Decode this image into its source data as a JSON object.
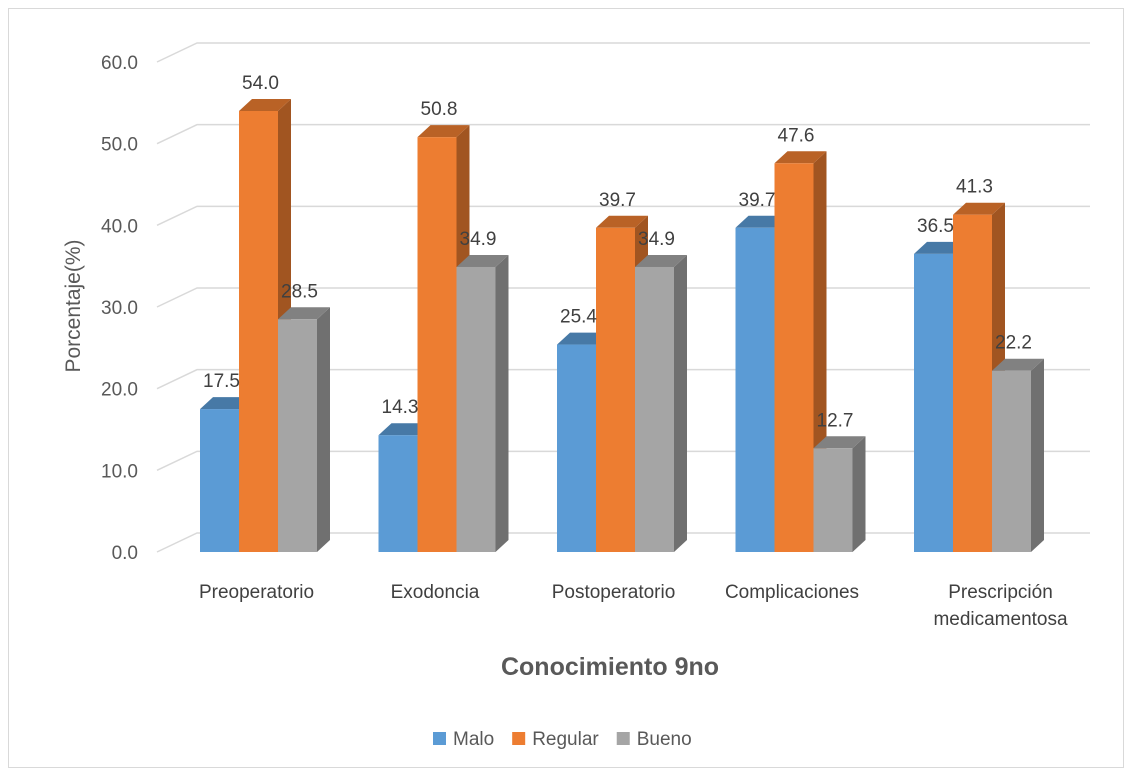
{
  "chart_data": {
    "type": "bar",
    "title": "",
    "xlabel": "Conocimiento 9no",
    "ylabel": "Porcentaje(%)",
    "ylim": [
      0,
      60
    ],
    "yticks": [
      "0.0",
      "10.0",
      "20.0",
      "30.0",
      "40.0",
      "50.0",
      "60.0"
    ],
    "categories": [
      [
        "Preoperatorio"
      ],
      [
        "Exodoncia"
      ],
      [
        "Postoperatorio"
      ],
      [
        "Complicaciones"
      ],
      [
        "Prescripción",
        "medicamentosa"
      ]
    ],
    "series": [
      {
        "name": "Malo",
        "color": "#5b9bd5",
        "values": [
          17.5,
          14.3,
          25.4,
          39.7,
          36.5
        ]
      },
      {
        "name": "Regular",
        "color": "#ed7d31",
        "values": [
          54.0,
          50.8,
          39.7,
          47.6,
          41.3
        ]
      },
      {
        "name": "Bueno",
        "color": "#a5a5a5",
        "values": [
          28.5,
          34.9,
          34.9,
          12.7,
          22.2
        ]
      }
    ],
    "grid": true,
    "legend": "bottom",
    "style": "3d-clustered-column"
  }
}
